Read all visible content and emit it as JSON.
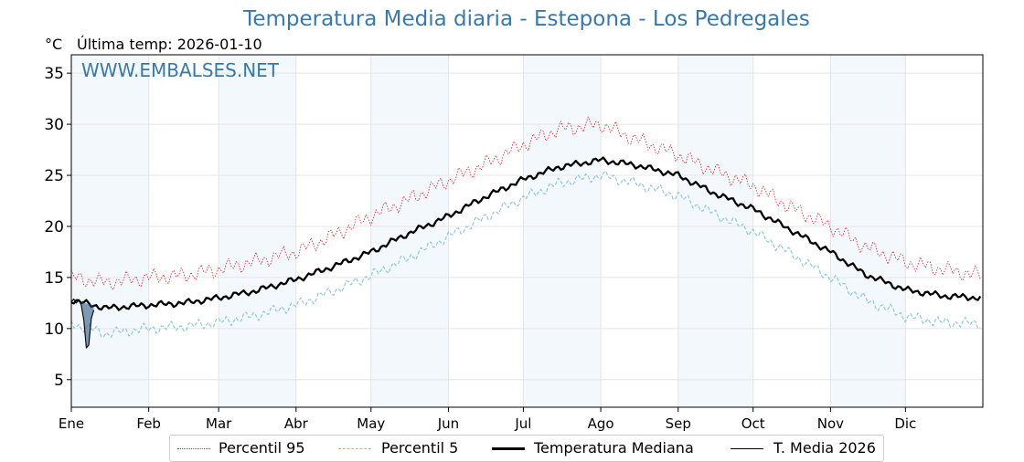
{
  "chart_data": {
    "type": "line",
    "title": "Temperatura Media diaria - Estepona - Los Pedregales",
    "unit_label": "°C",
    "subtitle": "Última temp: 2026-01-10",
    "watermark": "WWW.EMBALSES.NET",
    "months": [
      "Ene",
      "Feb",
      "Mar",
      "Abr",
      "May",
      "Jun",
      "Jul",
      "Ago",
      "Sep",
      "Oct",
      "Nov",
      "Dic"
    ],
    "month_start_days": [
      1,
      32,
      60,
      91,
      121,
      152,
      182,
      213,
      244,
      274,
      305,
      335
    ],
    "ylim": [
      2.3,
      36.8
    ],
    "yticks": [
      5,
      10,
      15,
      20,
      25,
      30,
      35
    ],
    "grid": true,
    "legend_position": "bottom",
    "legend": [
      "Percentil 95",
      "Percentil 5",
      "Temperatura Mediana",
      "T. Media 2026"
    ],
    "series": [
      {
        "name": "Percentil 95",
        "color": "#e02020",
        "style": "dotted",
        "day": [
          1,
          15,
          32,
          46,
          60,
          75,
          91,
          105,
          121,
          135,
          152,
          166,
          182,
          196,
          213,
          227,
          244,
          258,
          274,
          288,
          305,
          319,
          335,
          350,
          365
        ],
        "values": [
          15.0,
          14.5,
          15.0,
          15.2,
          15.8,
          16.6,
          17.5,
          19.0,
          21.0,
          22.5,
          24.5,
          26.0,
          28.0,
          29.5,
          30.0,
          28.5,
          27.0,
          25.5,
          24.0,
          22.0,
          20.0,
          18.0,
          16.5,
          15.8,
          15.2
        ]
      },
      {
        "name": "Percentil 5",
        "color": "#87c4dc",
        "style": "dashed",
        "day": [
          1,
          15,
          32,
          46,
          60,
          75,
          91,
          105,
          121,
          135,
          152,
          166,
          182,
          196,
          213,
          227,
          244,
          258,
          274,
          288,
          305,
          319,
          335,
          350,
          365
        ],
        "values": [
          10.5,
          9.5,
          10.0,
          10.2,
          10.6,
          11.3,
          12.3,
          13.6,
          15.2,
          16.8,
          19.0,
          20.8,
          22.8,
          24.2,
          25.0,
          24.2,
          23.0,
          21.3,
          19.5,
          17.5,
          15.0,
          12.8,
          11.2,
          10.6,
          10.5
        ]
      },
      {
        "name": "Temperatura Mediana",
        "color": "#000000",
        "style": "solid-thick",
        "day": [
          1,
          15,
          32,
          46,
          60,
          75,
          91,
          105,
          121,
          135,
          152,
          166,
          182,
          196,
          213,
          227,
          244,
          258,
          274,
          288,
          305,
          319,
          335,
          350,
          365
        ],
        "values": [
          12.8,
          12.0,
          12.3,
          12.5,
          13.0,
          13.7,
          14.8,
          16.0,
          17.5,
          19.2,
          21.0,
          22.8,
          24.6,
          25.8,
          26.5,
          26.0,
          25.0,
          23.3,
          21.7,
          19.8,
          17.5,
          15.3,
          13.8,
          13.2,
          13.0
        ]
      },
      {
        "name": "T. Media 2026",
        "color": "#000000",
        "style": "solid-thin",
        "day": [
          1,
          2,
          3,
          4,
          5,
          6,
          7,
          8,
          9,
          10
        ],
        "values": [
          12.6,
          12.9,
          12.5,
          12.8,
          12.3,
          10.8,
          8.1,
          8.4,
          11.0,
          11.8
        ]
      }
    ]
  }
}
